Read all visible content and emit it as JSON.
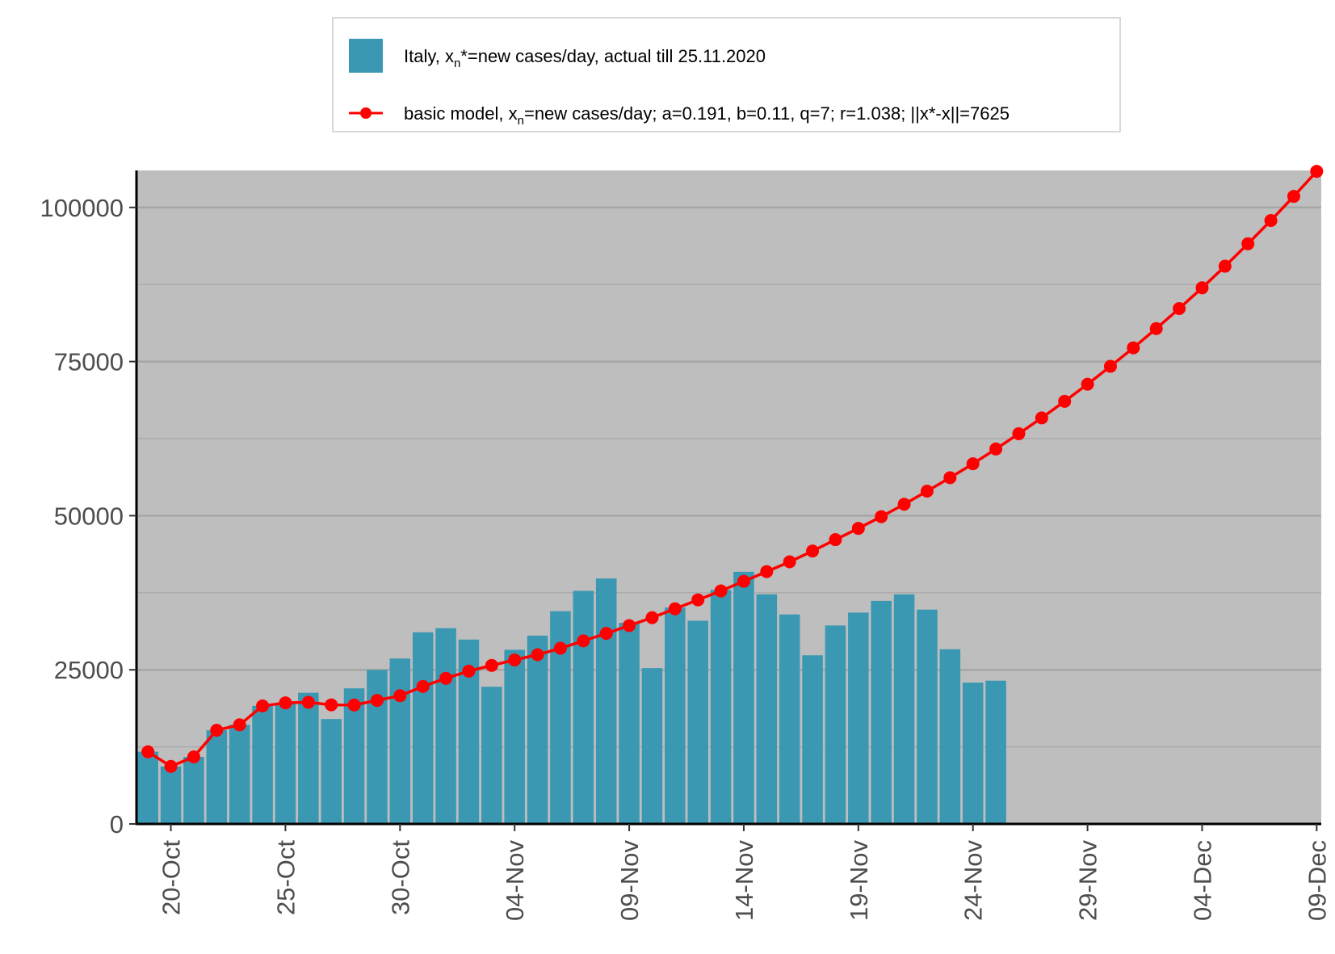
{
  "chart_data": {
    "type": "bar",
    "x_tick_labels": [
      "20-Oct",
      "25-Oct",
      "30-Oct",
      "04-Nov",
      "09-Nov",
      "14-Nov",
      "19-Nov",
      "24-Nov",
      "29-Nov",
      "04-Dec",
      "09-Dec"
    ],
    "y_tick_labels": [
      "0",
      "25000",
      "50000",
      "75000",
      "100000"
    ],
    "ylim": [
      0,
      106000
    ],
    "grid": "horizontal major and minor",
    "legend_position": "top",
    "series": [
      {
        "type": "bar",
        "legend_prefix": "Italy, x",
        "legend_sub": "n",
        "legend_suffix": "*=new cases/day, actual till 25.11.2020",
        "color": "#3A98B2",
        "x": [
          "19-Oct",
          "20-Oct",
          "21-Oct",
          "22-Oct",
          "23-Oct",
          "24-Oct",
          "25-Oct",
          "26-Oct",
          "27-Oct",
          "28-Oct",
          "29-Oct",
          "30-Oct",
          "31-Oct",
          "01-Nov",
          "02-Nov",
          "03-Nov",
          "04-Nov",
          "05-Nov",
          "06-Nov",
          "07-Nov",
          "08-Nov",
          "09-Nov",
          "10-Nov",
          "11-Nov",
          "12-Nov",
          "13-Nov",
          "14-Nov",
          "15-Nov",
          "16-Nov",
          "17-Nov",
          "18-Nov",
          "19-Nov",
          "20-Nov",
          "21-Nov",
          "22-Nov",
          "23-Nov",
          "24-Nov",
          "25-Nov"
        ],
        "values": [
          11705,
          9338,
          10874,
          15199,
          16079,
          19143,
          19644,
          21273,
          17012,
          21994,
          24991,
          26831,
          31084,
          31758,
          29907,
          22253,
          28244,
          30548,
          34505,
          37809,
          39811,
          32616,
          25271,
          35098,
          32961,
          37978,
          40902,
          37255,
          33979,
          27354,
          32191,
          34283,
          36176,
          37242,
          34767,
          28337,
          22930,
          23232
        ]
      },
      {
        "type": "line",
        "legend_prefix": "basic model,  x",
        "legend_sub": "n",
        "legend_suffix": "=new cases/day; a=0.191, b=0.11, q=7;  r=1.038; ||x*-x||=7625",
        "color": "#FF0000",
        "x": [
          "19-Oct",
          "20-Oct",
          "21-Oct",
          "22-Oct",
          "23-Oct",
          "24-Oct",
          "25-Oct",
          "26-Oct",
          "27-Oct",
          "28-Oct",
          "29-Oct",
          "30-Oct",
          "31-Oct",
          "01-Nov",
          "02-Nov",
          "03-Nov",
          "04-Nov",
          "05-Nov",
          "06-Nov",
          "07-Nov",
          "08-Nov",
          "09-Nov",
          "10-Nov",
          "11-Nov",
          "12-Nov",
          "13-Nov",
          "14-Nov",
          "15-Nov",
          "16-Nov",
          "17-Nov",
          "18-Nov",
          "19-Nov",
          "20-Nov",
          "21-Nov",
          "22-Nov",
          "23-Nov",
          "24-Nov",
          "25-Nov",
          "26-Nov",
          "27-Nov",
          "28-Nov",
          "29-Nov",
          "30-Nov",
          "01-Dec",
          "02-Dec",
          "03-Dec",
          "04-Dec",
          "05-Dec",
          "06-Dec",
          "07-Dec",
          "08-Dec",
          "09-Dec"
        ],
        "values": [
          11705,
          9338,
          10874,
          15199,
          16079,
          19143,
          19644,
          19731,
          19317,
          19291,
          20040,
          20806,
          22304,
          23623,
          24784,
          25714,
          26598,
          27448,
          28496,
          29694,
          30908,
          32175,
          33458,
          34895,
          36350,
          37795,
          39360,
          40934,
          42519,
          44267,
          46113,
          47944,
          49844,
          51852,
          53981,
          56162,
          58423,
          60822,
          63294,
          65860,
          68548,
          71327,
          74230,
          77231,
          80349,
          83595,
          86962,
          90466,
          94104,
          97877,
          101795,
          105860
        ]
      }
    ]
  }
}
